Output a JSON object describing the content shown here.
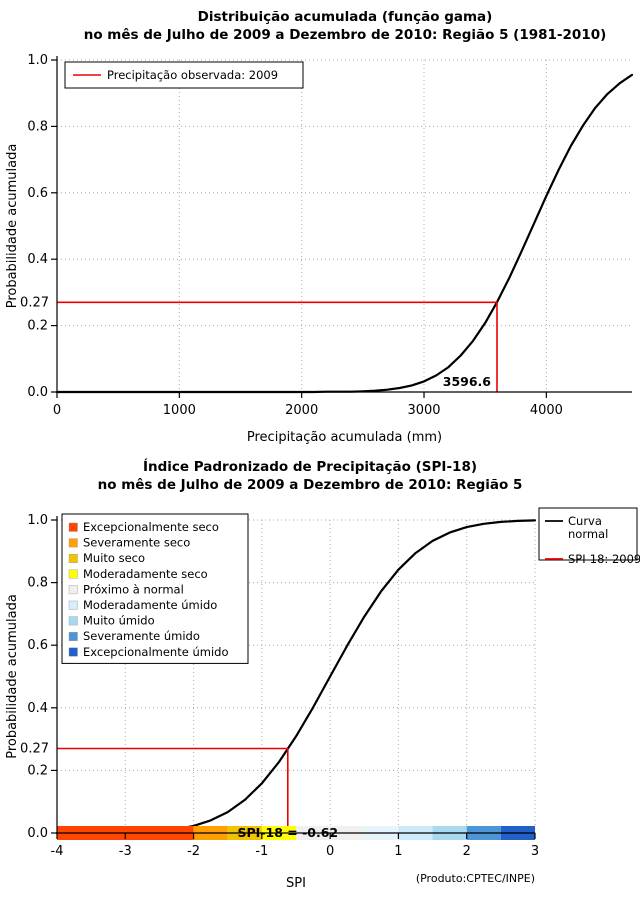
{
  "page": {
    "background": "#ffffff"
  },
  "chart_data": [
    {
      "type": "line",
      "title": "Distribuição acumulada (função gama)",
      "subtitle": "no mês de Julho de 2009 a Dezembro de 2010: Região 5 (1981-2010)",
      "xlabel": "Precipitação acumulada (mm)",
      "ylabel": "Probabilidade acumulada",
      "xlim": [
        0,
        4700
      ],
      "ylim": [
        0,
        1
      ],
      "xticks": [
        0,
        1000,
        2000,
        3000,
        4000
      ],
      "xtick_labels": [
        "0",
        "1000",
        "2000",
        "3000",
        "4000"
      ],
      "yticks": [
        0,
        0.2,
        0.4,
        0.6,
        0.8,
        1.0
      ],
      "ytick_labels": [
        "0.0",
        "0.2",
        "0.4",
        "0.6",
        "0.8",
        "1.0"
      ],
      "grid": true,
      "series": [
        {
          "name": "Distribuição gama acumulada",
          "color": "#000000",
          "x": [
            0,
            100,
            200,
            300,
            400,
            500,
            600,
            700,
            800,
            900,
            1000,
            1100,
            1200,
            1300,
            1400,
            1500,
            1600,
            1700,
            1800,
            1900,
            2000,
            2100,
            2200,
            2300,
            2400,
            2500,
            2600,
            2700,
            2800,
            2900,
            3000,
            3100,
            3200,
            3300,
            3400,
            3500,
            3600,
            3700,
            3800,
            3900,
            4000,
            4100,
            4200,
            4300,
            4400,
            4500,
            4600,
            4700
          ],
          "y": [
            0,
            0,
            0,
            0,
            0,
            0,
            0,
            0,
            0,
            0,
            0,
            0,
            0,
            0,
            0,
            0,
            0,
            0,
            0,
            0,
            0,
            0,
            0.001,
            0.001,
            0.001,
            0.002,
            0.004,
            0.007,
            0.012,
            0.02,
            0.032,
            0.05,
            0.075,
            0.11,
            0.154,
            0.208,
            0.273,
            0.346,
            0.426,
            0.508,
            0.591,
            0.669,
            0.741,
            0.803,
            0.856,
            0.898,
            0.93,
            0.955
          ]
        }
      ],
      "legend": {
        "position": "top-left",
        "items": [
          {
            "label": "Precipitação observada: 2009",
            "color": "#EE0000",
            "type": "line"
          }
        ]
      },
      "annotation": {
        "x": 3596.6,
        "y": 0.27,
        "x_label": "3596.6",
        "y_label": "0.27",
        "color": "#EE0000"
      }
    },
    {
      "type": "line",
      "title": "Índice Padronizado de Precipitação (SPI-18)",
      "subtitle": "no mês de Julho de 2009 a Dezembro de 2010: Região 5",
      "xlabel": "SPI",
      "ylabel": "Probabilidade acumulada",
      "xlim": [
        -4,
        3
      ],
      "ylim": [
        0,
        1
      ],
      "xticks": [
        -4,
        -3,
        -2,
        -1,
        0,
        1,
        2,
        3
      ],
      "xtick_labels": [
        "-4",
        "-3",
        "-2",
        "-1",
        "0",
        "1",
        "2",
        "3"
      ],
      "yticks": [
        0,
        0.2,
        0.4,
        0.6,
        0.8,
        1.0
      ],
      "ytick_labels": [
        "0.0",
        "0.2",
        "0.4",
        "0.6",
        "0.8",
        "1.0"
      ],
      "grid": true,
      "series": [
        {
          "name": "Curva normal",
          "color": "#000000",
          "x": [
            -4,
            -3.75,
            -3.5,
            -3.25,
            -3,
            -2.75,
            -2.5,
            -2.25,
            -2,
            -1.75,
            -1.5,
            -1.25,
            -1,
            -0.75,
            -0.5,
            -0.25,
            0,
            0.25,
            0.5,
            0.75,
            1,
            1.25,
            1.5,
            1.75,
            2,
            2.25,
            2.5,
            2.75,
            3
          ],
          "y": [
            0.0,
            0.0001,
            0.0002,
            0.0006,
            0.0013,
            0.003,
            0.0062,
            0.0122,
            0.0228,
            0.0401,
            0.0668,
            0.1056,
            0.1587,
            0.2266,
            0.3085,
            0.4013,
            0.5,
            0.5987,
            0.6915,
            0.7734,
            0.8413,
            0.8944,
            0.9332,
            0.9599,
            0.9772,
            0.9878,
            0.9938,
            0.997,
            0.9987
          ]
        }
      ],
      "legend_right": {
        "items": [
          {
            "label": "Curva normal",
            "label_lines": [
              "Curva",
              "normal"
            ],
            "color": "#000000"
          },
          {
            "label": "SPI-18: 2009",
            "label_lines": [
              "SPI-18: 2009"
            ],
            "color": "#EE0000"
          }
        ]
      },
      "categories_legend": [
        {
          "label": "Excepcionalmente seco",
          "color": "#FF4500"
        },
        {
          "label": "Severamente seco",
          "color": "#FFA000"
        },
        {
          "label": "Muito seco",
          "color": "#F0C400"
        },
        {
          "label": "Moderadamente seco",
          "color": "#FFFF00"
        },
        {
          "label": "Próximo à normal",
          "color": "#F0F0F0"
        },
        {
          "label": "Moderadamente úmido",
          "color": "#D8EEFA"
        },
        {
          "label": "Muito úmido",
          "color": "#A8D9F0"
        },
        {
          "label": "Severamente úmido",
          "color": "#4C96D8"
        },
        {
          "label": "Excepcionalmente úmido",
          "color": "#2060C8"
        }
      ],
      "color_bar": [
        {
          "from": -4,
          "to": -2,
          "color": "#FF4500"
        },
        {
          "from": -2,
          "to": -1.5,
          "color": "#FFA000"
        },
        {
          "from": -1.5,
          "to": -1,
          "color": "#F0C400"
        },
        {
          "from": -1,
          "to": -0.5,
          "color": "#FFFF00"
        },
        {
          "from": -0.5,
          "to": 0.5,
          "color": "#F0F0F0"
        },
        {
          "from": 0.5,
          "to": 1,
          "color": "#E6F4FC"
        },
        {
          "from": 1,
          "to": 1.5,
          "color": "#CFEAF8"
        },
        {
          "from": 1.5,
          "to": 2,
          "color": "#A8D9F0"
        },
        {
          "from": 2,
          "to": 2.5,
          "color": "#4C96D8"
        },
        {
          "from": 2.5,
          "to": 3,
          "color": "#2060C8"
        }
      ],
      "annotation": {
        "x": -0.62,
        "y": 0.27,
        "bar_text": "SPI-18 = -0.62",
        "y_label": "0.27",
        "color": "#EE0000"
      },
      "footer": "(Produto:CPTEC/INPE)"
    }
  ]
}
